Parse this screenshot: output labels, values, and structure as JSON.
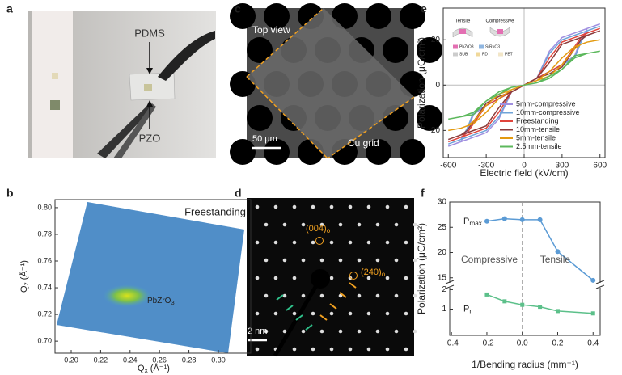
{
  "panels": {
    "a": {
      "label": "a",
      "texts": [
        "PDMS",
        "PZO"
      ]
    },
    "c": {
      "label": "c",
      "view": "Top view",
      "scale": "50 μm",
      "grid": "Cu grid"
    },
    "d": {
      "label": "d",
      "spots": [
        {
          "main": "(004)",
          "sub": "o"
        },
        {
          "main": "(240)",
          "sub": "o"
        }
      ],
      "scale": "2 nm"
    }
  },
  "chart_data": [
    {
      "type": "map",
      "label": "b",
      "title": "Freestanding",
      "annotation": {
        "main": "PbZrO",
        "sub": "3"
      },
      "xlabel": {
        "main": "Q",
        "sub": "x",
        "unit": " (Å⁻¹)"
      },
      "ylabel": {
        "main": "Q",
        "sub": "z",
        "unit": " (Å⁻¹)"
      },
      "xlim": [
        0.189,
        0.322
      ],
      "ylim": [
        0.691,
        0.806
      ],
      "xticks": [
        {
          "value": 0.2,
          "label": "0.20"
        },
        {
          "value": 0.22,
          "label": "0.22"
        },
        {
          "value": 0.24,
          "label": "0.24"
        },
        {
          "value": 0.26,
          "label": "0.26"
        },
        {
          "value": 0.28,
          "label": "0.28"
        },
        {
          "value": 0.3,
          "label": "0.30"
        }
      ],
      "yticks": [
        {
          "value": 0.7,
          "label": "0.70"
        },
        {
          "value": 0.72,
          "label": "0.72"
        },
        {
          "value": 0.74,
          "label": "0.74"
        },
        {
          "value": 0.76,
          "label": "0.76"
        },
        {
          "value": 0.78,
          "label": "0.78"
        },
        {
          "value": 0.8,
          "label": "0.80"
        }
      ]
    },
    {
      "type": "line",
      "label": "e",
      "xlabel": "Electric field (kV/cm)",
      "ylabel": "Polarization (μC/cm²)",
      "xlim": [
        -640,
        640
      ],
      "ylim": [
        -32,
        34
      ],
      "xticks": [
        -600,
        -300,
        0,
        300,
        600
      ],
      "yticks": [
        -20,
        0,
        20
      ],
      "legend": "lower right",
      "inset": {
        "modes": [
          "Tensile",
          "Compressive"
        ],
        "layers": [
          "PbZrO3",
          "SrRuO3",
          "SUB",
          "PD",
          "PET"
        ]
      },
      "x": [
        -600,
        -500,
        -400,
        -300,
        -200,
        -100,
        0,
        100,
        200,
        300,
        400,
        450,
        500,
        600,
        500,
        400,
        300,
        200,
        100,
        0,
        -100,
        -200,
        -300,
        -400,
        -450,
        -500,
        -600
      ],
      "series": [
        {
          "name": "5mm-compressive",
          "color": "#a08fe0",
          "values": [
            -27,
            -25,
            -23,
            -21,
            -15,
            -3,
            0,
            3,
            6,
            9,
            13,
            20,
            25,
            27,
            25,
            23,
            21,
            15,
            3,
            0,
            -3,
            -6,
            -9,
            -13,
            -20,
            -25,
            -27
          ]
        },
        {
          "name": "10mm-compressive",
          "color": "#6fa3d8",
          "values": [
            -26,
            -24,
            -22,
            -20,
            -14,
            -3,
            0,
            3,
            6,
            9,
            12,
            19,
            24,
            26,
            24,
            22,
            20,
            14,
            3,
            0,
            -3,
            -6,
            -9,
            -12,
            -19,
            -24,
            -26
          ]
        },
        {
          "name": "Freestanding",
          "color": "#e0443c",
          "values": [
            -25,
            -23,
            -21,
            -19,
            -12,
            -3,
            0,
            3,
            6,
            9,
            17,
            21,
            23,
            25,
            23,
            21,
            19,
            12,
            3,
            0,
            -3,
            -6,
            -9,
            -17,
            -21,
            -23,
            -25
          ]
        },
        {
          "name": "10mm-tensile",
          "color": "#8a3b3b",
          "values": [
            -24,
            -22,
            -20,
            -18,
            -10,
            -3,
            0,
            3,
            5,
            8,
            16,
            20,
            22,
            24,
            22,
            20,
            18,
            10,
            3,
            0,
            -3,
            -5,
            -8,
            -16,
            -20,
            -22,
            -24
          ]
        },
        {
          "name": "5mm-tensile",
          "color": "#e39a10",
          "values": [
            -20,
            -19,
            -17,
            -12,
            -6,
            -2,
            0,
            2,
            4,
            9,
            16,
            18,
            19,
            20,
            19,
            17,
            12,
            6,
            2,
            0,
            -2,
            -4,
            -9,
            -16,
            -18,
            -19,
            -20
          ]
        },
        {
          "name": "2.5mm-tensile",
          "color": "#5cb85c",
          "values": [
            -15,
            -14,
            -13,
            -7,
            -4,
            -1,
            0,
            1,
            3,
            7,
            12,
            13,
            14,
            15,
            14,
            13,
            7,
            4,
            1,
            0,
            -1,
            -3,
            -7,
            -12,
            -13,
            -14,
            -15
          ]
        }
      ]
    },
    {
      "type": "broken-line",
      "label": "f",
      "xlabel": "1/Bending radius (mm⁻¹)",
      "ylabel": "Polarization (μC/cm²)",
      "xlim": [
        -0.41,
        0.44
      ],
      "xticks": [
        -0.4,
        -0.2,
        {
          "value": 0,
          "label": "0.0"
        },
        0.2,
        0.4
      ],
      "ylim": [
        14,
        30
      ],
      "yticks": [
        15,
        20,
        25,
        30
      ],
      "lower_ylim": [
        -0.35,
        2.1
      ],
      "lower_yticks": [
        1,
        2
      ],
      "regions": [
        "Compressive",
        "Tensile"
      ],
      "x": [
        -0.2,
        -0.1,
        0,
        0.1,
        0.2,
        0.4
      ],
      "series": [
        {
          "label": {
            "main": "P",
            "sub": "max"
          },
          "segment": "upper",
          "marker": "circle",
          "color": "#5b9bd5",
          "values": [
            26.2,
            26.7,
            26.5,
            26.5,
            20.2,
            14.5
          ]
        },
        {
          "label": {
            "main": "P",
            "sub": "r"
          },
          "segment": "lower",
          "marker": "square",
          "color": "#5cc08a",
          "values": [
            1.75,
            1.4,
            1.22,
            1.12,
            0.9,
            0.78
          ]
        }
      ]
    }
  ]
}
